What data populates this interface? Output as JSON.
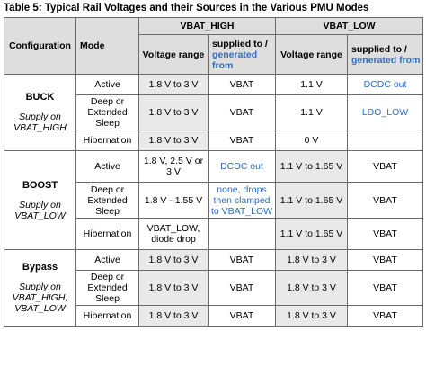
{
  "caption": "Table 5: Typical Rail Voltages and their Sources in the Various PMU Modes",
  "headers": {
    "configuration": "Configuration",
    "mode": "Mode",
    "vbat_high": "VBAT_HIGH",
    "vbat_low": "VBAT_LOW",
    "voltage_range": "Voltage range",
    "supplied_to": "supplied to /",
    "generated_from": "generated from"
  },
  "groups": [
    {
      "name": "BUCK",
      "supply": "Supply on VBAT_HIGH",
      "rows": [
        {
          "mode": "Active",
          "high_range": "1.8 V to 3 V",
          "high_src": "VBAT",
          "low_range": "1.1 V",
          "low_src": "DCDC out"
        },
        {
          "mode": "Deep or Extended Sleep",
          "high_range": "1.8 V to 3 V",
          "high_src": "VBAT",
          "low_range": "1.1 V",
          "low_src": "LDO_LOW"
        },
        {
          "mode": "Hibernation",
          "high_range": "1.8 V to 3 V",
          "high_src": "VBAT",
          "low_range": "0 V",
          "low_src": ""
        }
      ]
    },
    {
      "name": "BOOST",
      "supply": "Supply on VBAT_LOW",
      "rows": [
        {
          "mode": "Active",
          "high_range": "1.8 V, 2.5 V or 3 V",
          "high_src": "DCDC out",
          "low_range": "1.1 V to 1.65 V",
          "low_src": "VBAT"
        },
        {
          "mode": "Deep or Extended Sleep",
          "high_range": "1.8 V - 1.55 V",
          "high_src": "none, drops then clamped to VBAT_LOW",
          "low_range": "1.1 V to 1.65 V",
          "low_src": "VBAT"
        },
        {
          "mode": "Hibernation",
          "high_range": "VBAT_LOW, diode drop",
          "high_src": "",
          "low_range": "1.1 V to 1.65 V",
          "low_src": "VBAT"
        }
      ]
    },
    {
      "name": "Bypass",
      "supply": "Supply on VBAT_HIGH, VBAT_LOW",
      "rows": [
        {
          "mode": "Active",
          "high_range": "1.8 V to 3 V",
          "high_src": "VBAT",
          "low_range": "1.8 V to 3 V",
          "low_src": "VBAT"
        },
        {
          "mode": "Deep or Extended Sleep",
          "high_range": "1.8 V to 3 V",
          "high_src": "VBAT",
          "low_range": "1.8 V to 3 V",
          "low_src": "VBAT"
        },
        {
          "mode": "Hibernation",
          "high_range": "1.8 V to 3 V",
          "high_src": "VBAT",
          "low_range": "1.8 V to 3 V",
          "low_src": "VBAT"
        }
      ]
    }
  ]
}
